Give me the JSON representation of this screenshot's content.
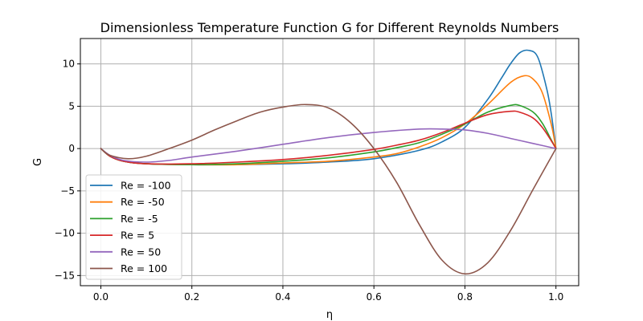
{
  "chart_data": {
    "type": "line",
    "title": "Dimensionless Temperature Function G for Different Reynolds Numbers",
    "xlabel": "η",
    "ylabel": "G",
    "xlim": [
      -0.045,
      1.05
    ],
    "ylim": [
      -16.2,
      13.0
    ],
    "xticks": [
      0.0,
      0.2,
      0.4,
      0.6,
      0.8,
      1.0
    ],
    "xtick_labels": [
      "0.0",
      "0.2",
      "0.4",
      "0.6",
      "0.8",
      "1.0"
    ],
    "yticks": [
      -15,
      -10,
      -5,
      0,
      5,
      10
    ],
    "ytick_labels": [
      "−15",
      "−10",
      "−5",
      "0",
      "5",
      "10"
    ],
    "grid": true,
    "legend_position": "lower-left",
    "series": [
      {
        "name": "Re = -100",
        "color": "#1f77b4",
        "x": [
          0,
          0.02,
          0.05,
          0.1,
          0.2,
          0.3,
          0.4,
          0.5,
          0.6,
          0.7,
          0.75,
          0.8,
          0.85,
          0.88,
          0.9,
          0.92,
          0.94,
          0.96,
          0.98,
          0.99,
          1.0
        ],
        "y": [
          0,
          -0.9,
          -1.5,
          -1.8,
          -1.9,
          -1.9,
          -1.8,
          -1.6,
          -1.2,
          -0.2,
          0.8,
          2.5,
          5.8,
          8.3,
          10.0,
          11.3,
          11.6,
          10.8,
          7.0,
          4.0,
          0
        ]
      },
      {
        "name": "Re = -50",
        "color": "#ff7f0e",
        "x": [
          0,
          0.02,
          0.05,
          0.1,
          0.2,
          0.3,
          0.4,
          0.5,
          0.6,
          0.65,
          0.7,
          0.75,
          0.8,
          0.85,
          0.9,
          0.93,
          0.95,
          0.97,
          0.99,
          1.0
        ],
        "y": [
          0,
          -0.9,
          -1.5,
          -1.8,
          -1.9,
          -1.9,
          -1.7,
          -1.5,
          -1.0,
          -0.6,
          0.2,
          1.3,
          2.9,
          5.2,
          7.8,
          8.6,
          8.2,
          6.6,
          2.8,
          0
        ]
      },
      {
        "name": "Re = -5",
        "color": "#2ca02c",
        "x": [
          0,
          0.02,
          0.05,
          0.1,
          0.2,
          0.3,
          0.4,
          0.5,
          0.6,
          0.65,
          0.7,
          0.75,
          0.8,
          0.85,
          0.9,
          0.92,
          0.95,
          0.97,
          0.99,
          1.0
        ],
        "y": [
          0,
          -0.9,
          -1.5,
          -1.8,
          -1.9,
          -1.8,
          -1.5,
          -1.1,
          -0.4,
          0.1,
          0.7,
          1.7,
          2.9,
          4.3,
          5.1,
          5.1,
          4.3,
          3.0,
          1.0,
          0
        ]
      },
      {
        "name": "Re = 5",
        "color": "#d62728",
        "x": [
          0,
          0.02,
          0.05,
          0.1,
          0.2,
          0.3,
          0.4,
          0.5,
          0.6,
          0.65,
          0.7,
          0.75,
          0.8,
          0.85,
          0.9,
          0.92,
          0.95,
          0.97,
          0.99,
          1.0
        ],
        "y": [
          0,
          -0.9,
          -1.5,
          -1.8,
          -1.8,
          -1.6,
          -1.3,
          -0.8,
          -0.1,
          0.4,
          1.0,
          1.9,
          3.0,
          4.0,
          4.4,
          4.3,
          3.6,
          2.5,
          0.9,
          0
        ]
      },
      {
        "name": "Re = 50",
        "color": "#9467bd",
        "x": [
          0,
          0.02,
          0.05,
          0.1,
          0.15,
          0.2,
          0.3,
          0.4,
          0.5,
          0.6,
          0.7,
          0.75,
          0.8,
          0.85,
          0.9,
          0.95,
          1.0
        ],
        "y": [
          0,
          -0.8,
          -1.4,
          -1.6,
          -1.4,
          -1.0,
          -0.3,
          0.5,
          1.3,
          1.9,
          2.3,
          2.3,
          2.2,
          1.8,
          1.2,
          0.6,
          0
        ]
      },
      {
        "name": "Re = 100",
        "color": "#8c564b",
        "x": [
          0,
          0.02,
          0.06,
          0.1,
          0.15,
          0.2,
          0.25,
          0.3,
          0.35,
          0.4,
          0.45,
          0.5,
          0.55,
          0.6,
          0.65,
          0.7,
          0.75,
          0.8,
          0.85,
          0.9,
          0.95,
          1.0
        ],
        "y": [
          0,
          -0.8,
          -1.2,
          -0.9,
          0.0,
          1.0,
          2.2,
          3.3,
          4.3,
          4.9,
          5.2,
          4.8,
          3.0,
          0.0,
          -4.0,
          -9.0,
          -13.2,
          -14.8,
          -13.5,
          -9.7,
          -4.8,
          0
        ]
      }
    ]
  }
}
